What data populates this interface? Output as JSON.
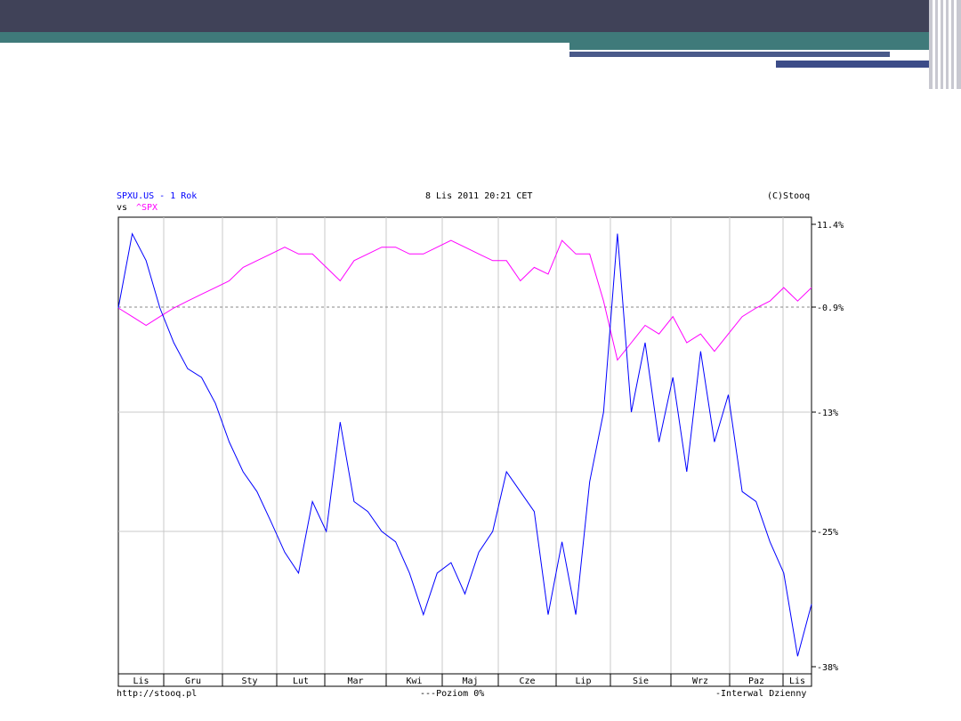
{
  "header": {
    "symbol": "SPXU.US - 1 Rok",
    "compare_prefix": "vs",
    "compare_symbol": "^SPX",
    "datetime": "8 Lis 2011 20:21 CET",
    "copyright": "(C)Stooq"
  },
  "footer": {
    "url": "http://stooq.pl",
    "legend_level": "Poziom 0%",
    "legend_interval": "Interwal Dzienny"
  },
  "colors": {
    "series_main": "#0000ff",
    "series_compare": "#ff00ff",
    "header_bar": "#404258",
    "header_accent": "#3f7a7a"
  },
  "chart_data": {
    "type": "line",
    "grid": true,
    "x_tick_labels": [
      "Lis",
      "Gru",
      "Sty",
      "Lut",
      "Mar",
      "Kwi",
      "Maj",
      "Cze",
      "Lip",
      "Sie",
      "Wrz",
      "Paz",
      "Lis"
    ],
    "y_tick_labels": [
      "11.4%",
      "-0.9%",
      "-13%",
      "-25%",
      "-38%"
    ],
    "y_ticks": [
      11.4,
      -0.9,
      -13,
      -25,
      -38
    ],
    "ylim": [
      -38,
      11.4
    ],
    "reference_level": -0.9,
    "series": [
      {
        "name": "SPXU.US",
        "x": [
          0,
          2,
          4,
          6,
          8,
          10,
          12,
          14,
          16,
          18,
          20,
          22,
          24,
          26,
          28,
          30,
          32,
          34,
          36,
          38,
          40,
          42,
          44,
          46,
          48,
          50,
          52,
          54,
          56,
          58,
          60,
          62,
          64,
          66,
          68,
          70,
          72,
          74,
          76,
          78,
          80,
          82,
          84,
          86,
          88,
          90,
          92,
          94,
          96,
          98,
          100
        ],
        "values": [
          -1,
          10,
          6,
          -1,
          -5,
          -8,
          -9,
          -12,
          -16,
          -19,
          -21,
          -24,
          -27,
          -29,
          -22,
          -25,
          -14,
          -22,
          -23,
          -25,
          -26,
          -29,
          -33,
          -29,
          -28,
          -31,
          -27,
          -25,
          -19,
          -21,
          -23,
          -33,
          -26,
          -33,
          -20,
          -13,
          10,
          -13,
          -5,
          -16,
          -9,
          -19,
          -6,
          -16,
          -11,
          -21,
          -22,
          -26,
          -29,
          -37,
          -32
        ]
      },
      {
        "name": "^SPX",
        "x": [
          0,
          2,
          4,
          6,
          8,
          10,
          12,
          14,
          16,
          18,
          20,
          22,
          24,
          26,
          28,
          30,
          32,
          34,
          36,
          38,
          40,
          42,
          44,
          46,
          48,
          50,
          52,
          54,
          56,
          58,
          60,
          62,
          64,
          66,
          68,
          70,
          72,
          74,
          76,
          78,
          80,
          82,
          84,
          86,
          88,
          90,
          92,
          94,
          96,
          98,
          100
        ],
        "values": [
          -1,
          -2,
          -3,
          -2,
          -1,
          0,
          1,
          2,
          3,
          5,
          6,
          7,
          8,
          7,
          7,
          5,
          3,
          6,
          7,
          8,
          8,
          7,
          7,
          8,
          9,
          8,
          7,
          6,
          6,
          3,
          5,
          4,
          9,
          7,
          7,
          0,
          -7,
          -5,
          -3,
          -4,
          -2,
          -5,
          -4,
          -6,
          -4,
          -2,
          -1,
          0,
          2,
          0,
          2
        ]
      }
    ]
  }
}
